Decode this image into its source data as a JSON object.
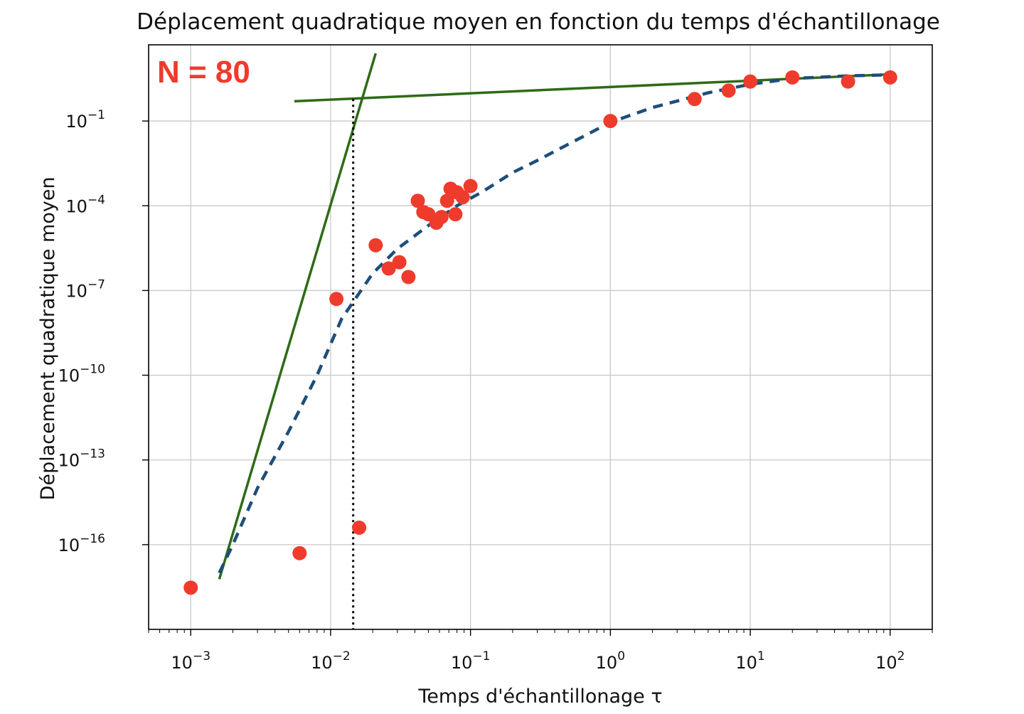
{
  "chart_data": {
    "type": "scatter",
    "title": "Déplacement quadratique moyen en fonction du temps d'échantillonage",
    "xlabel": "Temps d'échantillonage τ",
    "ylabel": "Déplacement quadratique moyen",
    "annotation": "N = 80",
    "xscale": "log",
    "yscale": "log",
    "xlim": [
      0.0005,
      200
    ],
    "ylim": [
      1e-19,
      50
    ],
    "grid": true,
    "x_ticks": [
      {
        "value": 0.001,
        "base": "10",
        "exp": "−3"
      },
      {
        "value": 0.01,
        "base": "10",
        "exp": "−2"
      },
      {
        "value": 0.1,
        "base": "10",
        "exp": "−1"
      },
      {
        "value": 1,
        "base": "10",
        "exp": "0"
      },
      {
        "value": 10,
        "base": "10",
        "exp": "1"
      },
      {
        "value": 100,
        "base": "10",
        "exp": "2"
      }
    ],
    "y_ticks": [
      {
        "value": 1e-16,
        "base": "10",
        "exp": "−16"
      },
      {
        "value": 1e-13,
        "base": "10",
        "exp": "−13"
      },
      {
        "value": 1e-10,
        "base": "10",
        "exp": "−10"
      },
      {
        "value": 1e-07,
        "base": "10",
        "exp": "−7"
      },
      {
        "value": 0.0001,
        "base": "10",
        "exp": "−4"
      },
      {
        "value": 0.1,
        "base": "10",
        "exp": "−1"
      }
    ],
    "scatter_points": {
      "color": "#ef3b2c",
      "x": [
        0.001,
        0.006,
        0.011,
        0.016,
        0.021,
        0.026,
        0.031,
        0.036,
        0.042,
        0.046,
        0.05,
        0.057,
        0.062,
        0.068,
        0.072,
        0.078,
        0.08,
        0.088,
        0.1,
        1,
        4,
        7,
        10,
        20,
        50,
        100
      ],
      "y": [
        3e-18,
        5e-17,
        5e-08,
        4e-16,
        4e-06,
        6e-07,
        1e-06,
        3e-07,
        0.00015,
        6e-05,
        5e-05,
        2.5e-05,
        4e-05,
        0.00015,
        0.0004,
        5e-05,
        0.0003,
        0.0002,
        0.0005,
        0.1,
        0.6,
        1.2,
        2.5,
        3.5,
        2.5,
        3.5
      ]
    },
    "fit_curve": {
      "style": "dashed",
      "color": "#1f4e79",
      "x": [
        0.0016,
        0.002,
        0.003,
        0.005,
        0.008,
        0.012,
        0.02,
        0.03,
        0.05,
        0.08,
        0.12,
        0.2,
        0.3,
        0.5,
        1,
        2,
        5,
        10,
        20,
        50,
        100
      ],
      "y": [
        1e-17,
        1e-16,
        1e-14,
        1e-12,
        1e-10,
        1e-08,
        4e-07,
        3e-06,
        2e-05,
        0.0001,
        0.0003,
        0.0015,
        0.004,
        0.015,
        0.09,
        0.3,
        1.0,
        2.0,
        3.2,
        4.0,
        4.3
      ]
    },
    "asymptote_lines": [
      {
        "color": "#2e6b16",
        "x": [
          0.0016,
          0.021
        ],
        "y": [
          6e-18,
          25
        ]
      },
      {
        "color": "#2e6b16",
        "x": [
          0.0055,
          100
        ],
        "y": [
          0.5,
          4.5
        ]
      }
    ],
    "crossover_line": {
      "style": "dotted",
      "color": "#000000",
      "x": 0.0145,
      "y_top": 0.6
    }
  }
}
